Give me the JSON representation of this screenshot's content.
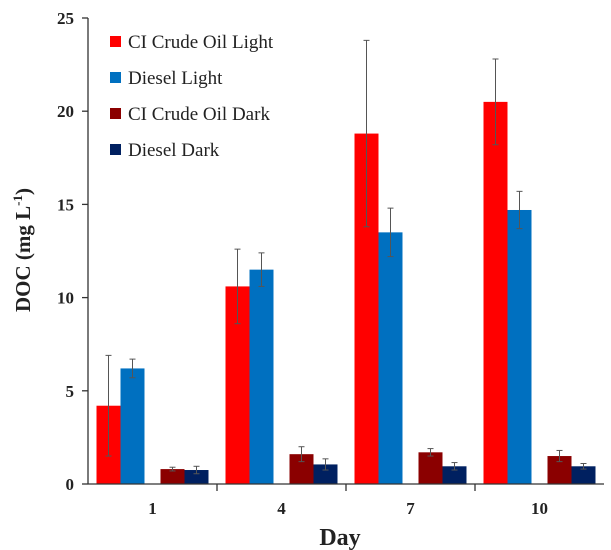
{
  "chart_data": {
    "type": "bar",
    "categories": [
      "1",
      "4",
      "7",
      "10"
    ],
    "xlabel": "Day",
    "ylabel_main": "DOC (mg L",
    "ylabel_sup": "-1",
    "ylabel_close": ")",
    "ylim": [
      0,
      25
    ],
    "yticks": [
      "0",
      "5",
      "10",
      "15",
      "20",
      "25"
    ],
    "grid": false,
    "legend_position": "top-left",
    "series": [
      {
        "name": "CI Crude Oil Light",
        "color": "#ff0000",
        "values": [
          4.2,
          10.6,
          18.8,
          20.5
        ],
        "errors": [
          2.7,
          2.0,
          5.0,
          2.3
        ]
      },
      {
        "name": "Diesel Light",
        "color": "#0070c0",
        "values": [
          6.2,
          11.5,
          13.5,
          14.7
        ],
        "errors": [
          0.5,
          0.9,
          1.3,
          1.0
        ]
      },
      {
        "name": "CI Crude Oil Dark",
        "color": "#8b0000",
        "values": [
          0.8,
          1.6,
          1.7,
          1.5
        ],
        "errors": [
          0.1,
          0.4,
          0.2,
          0.3
        ]
      },
      {
        "name": "Diesel Dark",
        "color": "#002060",
        "values": [
          0.75,
          1.05,
          0.95,
          0.95
        ],
        "errors": [
          0.2,
          0.3,
          0.2,
          0.15
        ]
      }
    ]
  }
}
